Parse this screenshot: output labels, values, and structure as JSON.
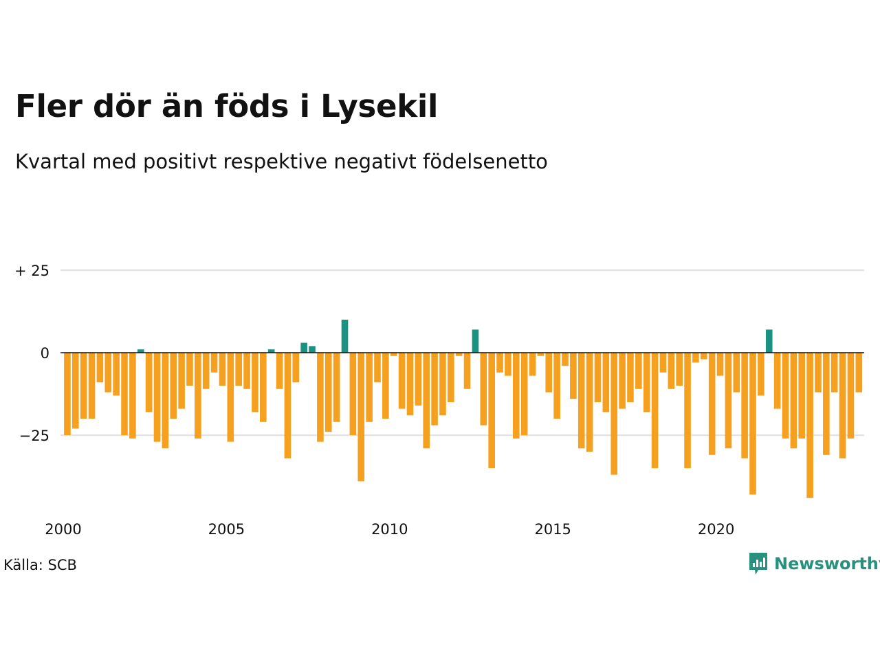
{
  "title": "Fler dör än föds i Lysekil",
  "subtitle": "Kvartal med positivt respektive negativt födelsenetto",
  "source": "Källa: SCB",
  "brand": "Newsworthy",
  "colors": {
    "positive": "#1a9282",
    "negative": "#f5a11f",
    "grid": "#e3e3e3",
    "axis": "#111111",
    "brand": "#27907e"
  },
  "chart_data": {
    "type": "bar",
    "xlabel": "",
    "ylabel": "",
    "ylim": [
      -50,
      35
    ],
    "y_ticks": [
      {
        "value": 25,
        "label": "+ 25"
      },
      {
        "value": 0,
        "label": "0"
      },
      {
        "value": -25,
        "label": "−25"
      }
    ],
    "x_ticks": [
      "2000",
      "2005",
      "2010",
      "2015",
      "2020"
    ],
    "start_year": 2000,
    "grid": true,
    "values": [
      -25,
      -23,
      -20,
      -20,
      -9,
      -12,
      -13,
      -25,
      -26,
      1,
      -18,
      -27,
      -29,
      -20,
      -17,
      -10,
      -26,
      -11,
      -6,
      -10,
      -27,
      -10,
      -11,
      -18,
      -21,
      1,
      -11,
      -32,
      -9,
      3,
      2,
      -27,
      -24,
      -21,
      10,
      -25,
      -39,
      -21,
      -9,
      -20,
      -1,
      -17,
      -19,
      -16,
      -29,
      -22,
      -19,
      -15,
      -1,
      -11,
      7,
      -22,
      -35,
      -6,
      -7,
      -26,
      -25,
      -7,
      -1,
      -12,
      -20,
      -4,
      -14,
      -29,
      -30,
      -15,
      -18,
      -37,
      -17,
      -15,
      -11,
      -18,
      -35,
      -6,
      -11,
      -10,
      -35,
      -3,
      -2,
      -31,
      -7,
      -29,
      -12,
      -32,
      -43,
      -13,
      7,
      -17,
      -26,
      -29,
      -26,
      -44,
      -12,
      -31,
      -12,
      -32,
      -26,
      -12
    ]
  }
}
